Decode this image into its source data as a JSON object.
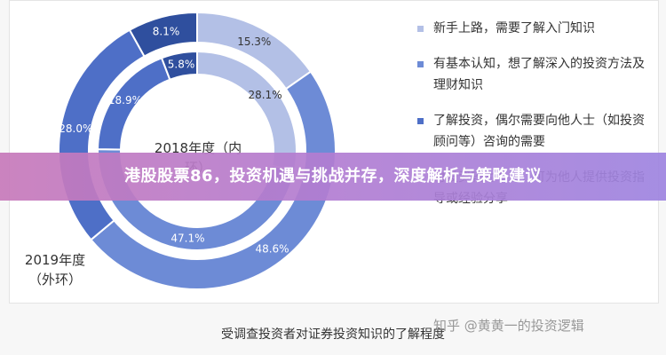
{
  "banner": {
    "title": "港股股票86，投资机遇与挑战并存，深度解析与策略建议"
  },
  "caption": "受调查投资者对证券投资知识的了解程度",
  "watermark": "知乎 @黄黄一的投资逻辑",
  "colors": {
    "newbie": "#b3c0e6",
    "basic": "#6d8bd6",
    "advanced": "#4e6fc7",
    "professional": "#2f4f9e",
    "separator": "#ffffff"
  },
  "chart_data": {
    "type": "pie",
    "title": "",
    "categories": [
      "新手上路，需要了解入门知识",
      "有基本认知，想了解深入的投资方法及理财知识",
      "了解投资，偶尔需要向他人士（如投资顾问等）咨询的需要",
      "对投资较为专业，可为他人提供投资指导或经验分享"
    ],
    "series": [
      {
        "name": "2018年度（内环）",
        "values": [
          28.1,
          47.1,
          18.9,
          5.8
        ]
      },
      {
        "name": "2019年度（外环）",
        "values": [
          15.3,
          48.6,
          28.0,
          8.1
        ]
      }
    ],
    "legend_position": "right"
  },
  "legend": [
    {
      "color_key": "newbie",
      "text": "新手上路，需要了解入门知识"
    },
    {
      "color_key": "basic",
      "text": "有基本认知，想了解深入的投资方法及理财知识"
    },
    {
      "color_key": "advanced",
      "text": "了解投资，偶尔需要向他人士（如投资顾问等）咨询的需要"
    },
    {
      "color_key": "professional",
      "text": "对投资较为专业，可为他人提供投资指导或经验分享"
    }
  ],
  "ring_labels": {
    "inner": "2018年度（内环）",
    "outer": "2019年度（外环）"
  }
}
